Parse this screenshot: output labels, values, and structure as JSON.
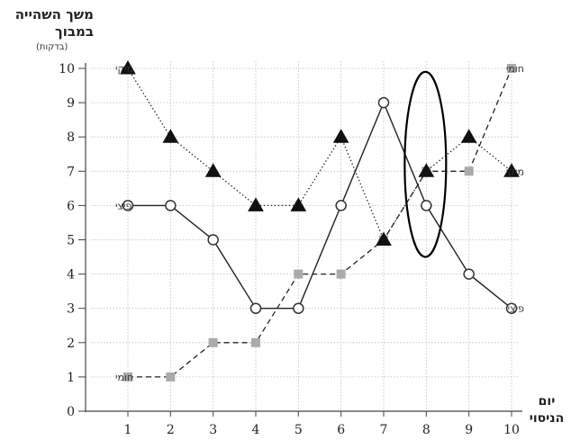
{
  "chart_data": {
    "type": "line",
    "ylabel_lines": [
      "משך השהייה",
      "במבוך"
    ],
    "ylabel_unit": "(בדקות)",
    "xlabel_lines": [
      "יום",
      "הניסוי"
    ],
    "x": [
      1,
      2,
      3,
      4,
      5,
      6,
      7,
      8,
      9,
      10
    ],
    "xlim": [
      1,
      10
    ],
    "ylim": [
      0,
      10
    ],
    "y_ticks": [
      0,
      1,
      2,
      3,
      4,
      5,
      6,
      7,
      8,
      9,
      10
    ],
    "grid": true,
    "series": [
      {
        "name": "מיקי",
        "marker": "triangle",
        "line": "dotted",
        "color": "#111111",
        "values": [
          10,
          8,
          7,
          6,
          6,
          8,
          5,
          7,
          8,
          7
        ]
      },
      {
        "name": "פיצי",
        "marker": "circle-open",
        "line": "solid",
        "color": "#333333",
        "values": [
          6,
          6,
          5,
          3,
          3,
          6,
          9,
          6,
          4,
          3
        ]
      },
      {
        "name": "חומי",
        "marker": "square",
        "line": "dashed",
        "color": "#aaaaaa",
        "values": [
          1,
          1,
          2,
          2,
          4,
          4,
          5,
          7,
          7,
          10
        ]
      }
    ],
    "highlight_x": 8
  }
}
